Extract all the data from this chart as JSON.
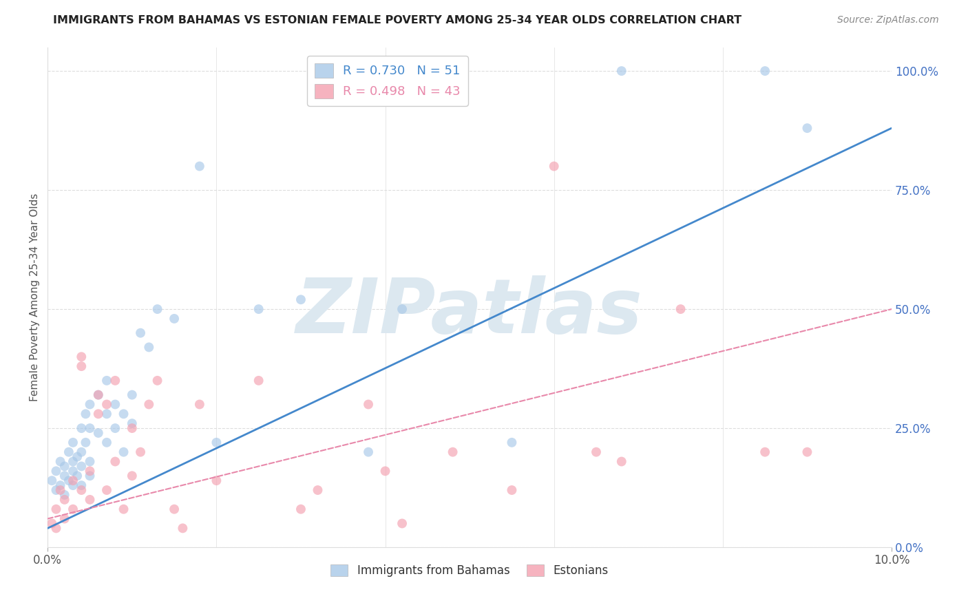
{
  "title": "IMMIGRANTS FROM BAHAMAS VS ESTONIAN FEMALE POVERTY AMONG 25-34 YEAR OLDS CORRELATION CHART",
  "source": "Source: ZipAtlas.com",
  "ylabel": "Female Poverty Among 25-34 Year Olds",
  "x_min": 0.0,
  "x_max": 0.1,
  "y_min": 0.0,
  "y_max": 1.05,
  "right_yticks": [
    0.0,
    0.25,
    0.5,
    0.75,
    1.0
  ],
  "right_yticklabels": [
    "0.0%",
    "25.0%",
    "50.0%",
    "75.0%",
    "100.0%"
  ],
  "xtick_positions": [
    0.0,
    0.1
  ],
  "xtick_labels": [
    "0.0%",
    "10.0%"
  ],
  "blue_label": "Immigrants from Bahamas",
  "pink_label": "Estonians",
  "blue_R": 0.73,
  "blue_N": 51,
  "pink_R": 0.498,
  "pink_N": 43,
  "blue_color": "#a8c8e8",
  "pink_color": "#f4a0b0",
  "blue_line_color": "#4488cc",
  "pink_line_color": "#e888aa",
  "watermark": "ZIPatlas",
  "watermark_color": "#dce8f0",
  "grid_color": "#dddddd",
  "blue_scatter_x": [
    0.0005,
    0.001,
    0.001,
    0.0015,
    0.0015,
    0.002,
    0.002,
    0.002,
    0.0025,
    0.0025,
    0.003,
    0.003,
    0.003,
    0.003,
    0.0035,
    0.0035,
    0.004,
    0.004,
    0.004,
    0.004,
    0.0045,
    0.0045,
    0.005,
    0.005,
    0.005,
    0.005,
    0.006,
    0.006,
    0.007,
    0.007,
    0.007,
    0.008,
    0.008,
    0.009,
    0.009,
    0.01,
    0.01,
    0.011,
    0.012,
    0.013,
    0.015,
    0.018,
    0.02,
    0.025,
    0.03,
    0.038,
    0.042,
    0.055,
    0.068,
    0.085,
    0.09
  ],
  "blue_scatter_y": [
    0.14,
    0.16,
    0.12,
    0.18,
    0.13,
    0.17,
    0.15,
    0.11,
    0.2,
    0.14,
    0.18,
    0.16,
    0.13,
    0.22,
    0.15,
    0.19,
    0.25,
    0.2,
    0.17,
    0.13,
    0.28,
    0.22,
    0.3,
    0.25,
    0.18,
    0.15,
    0.32,
    0.24,
    0.35,
    0.28,
    0.22,
    0.3,
    0.25,
    0.28,
    0.2,
    0.32,
    0.26,
    0.45,
    0.42,
    0.5,
    0.48,
    0.8,
    0.22,
    0.5,
    0.52,
    0.2,
    0.5,
    0.22,
    1.0,
    1.0,
    0.88
  ],
  "pink_scatter_x": [
    0.0005,
    0.001,
    0.001,
    0.0015,
    0.002,
    0.002,
    0.003,
    0.003,
    0.004,
    0.004,
    0.004,
    0.005,
    0.005,
    0.006,
    0.006,
    0.007,
    0.007,
    0.008,
    0.008,
    0.009,
    0.01,
    0.01,
    0.011,
    0.012,
    0.013,
    0.015,
    0.016,
    0.018,
    0.02,
    0.025,
    0.03,
    0.032,
    0.038,
    0.04,
    0.042,
    0.048,
    0.055,
    0.06,
    0.065,
    0.068,
    0.075,
    0.085,
    0.09
  ],
  "pink_scatter_y": [
    0.05,
    0.08,
    0.04,
    0.12,
    0.1,
    0.06,
    0.14,
    0.08,
    0.4,
    0.38,
    0.12,
    0.16,
    0.1,
    0.32,
    0.28,
    0.3,
    0.12,
    0.35,
    0.18,
    0.08,
    0.25,
    0.15,
    0.2,
    0.3,
    0.35,
    0.08,
    0.04,
    0.3,
    0.14,
    0.35,
    0.08,
    0.12,
    0.3,
    0.16,
    0.05,
    0.2,
    0.12,
    0.8,
    0.2,
    0.18,
    0.5,
    0.2,
    0.2
  ],
  "blue_trend_x": [
    0.0,
    0.1
  ],
  "blue_trend_y": [
    0.04,
    0.88
  ],
  "pink_trend_x": [
    0.0,
    0.1
  ],
  "pink_trend_y": [
    0.06,
    0.5
  ]
}
